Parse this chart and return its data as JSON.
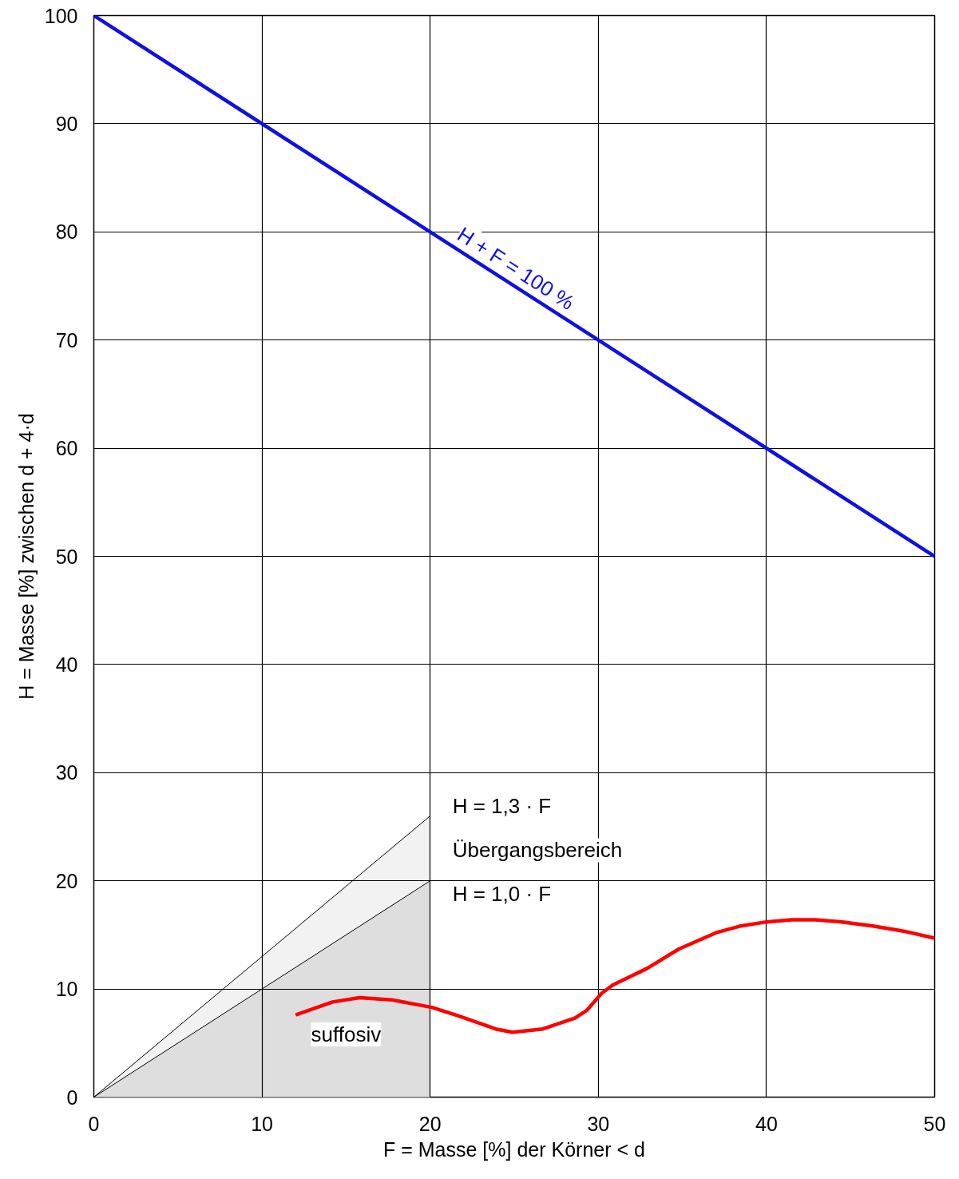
{
  "chart_data": {
    "type": "line",
    "xlabel": "F = Masse [%] der Körner < d",
    "ylabel": "H = Masse [%] zwischen d + 4·d",
    "xlim": [
      0,
      50
    ],
    "ylim": [
      0,
      100
    ],
    "xticks": [
      0,
      10,
      20,
      30,
      40,
      50
    ],
    "yticks": [
      0,
      10,
      20,
      30,
      40,
      50,
      60,
      70,
      80,
      90,
      100
    ],
    "grid": true,
    "series": [
      {
        "type": "area",
        "color": "#f2f2f2",
        "x": [
          0,
          20
        ],
        "values": [
          0,
          26
        ]
      },
      {
        "type": "area",
        "color": "#dedede",
        "x": [
          0,
          20
        ],
        "values": [
          0,
          20
        ]
      },
      {
        "color": "#1010e0",
        "x": [
          0,
          50
        ],
        "values": [
          100,
          50
        ]
      },
      {
        "color": "#ff0000",
        "x": [
          12.0,
          14.2,
          15.8,
          17.7,
          20.1,
          21.7,
          23.9,
          24.9,
          26.7,
          28.6,
          29.3,
          30.2,
          30.9,
          32.9,
          34.8,
          37.0,
          38.4,
          40.0,
          41.5,
          42.9,
          44.5,
          46.4,
          48.3,
          50.0
        ],
        "values": [
          7.6,
          8.8,
          9.2,
          9.0,
          8.3,
          7.5,
          6.3,
          6.0,
          6.3,
          7.3,
          8.0,
          9.6,
          10.4,
          11.9,
          13.7,
          15.2,
          15.8,
          16.2,
          16.4,
          16.4,
          16.2,
          15.8,
          15.3,
          14.7
        ]
      }
    ],
    "annotations": [
      {
        "text": "H + F = 100 %",
        "x": 25,
        "y": 75
      },
      "H = 1,3 · F",
      "Übergangsbereich",
      "H = 1,0 · F",
      "suffosiv"
    ]
  }
}
